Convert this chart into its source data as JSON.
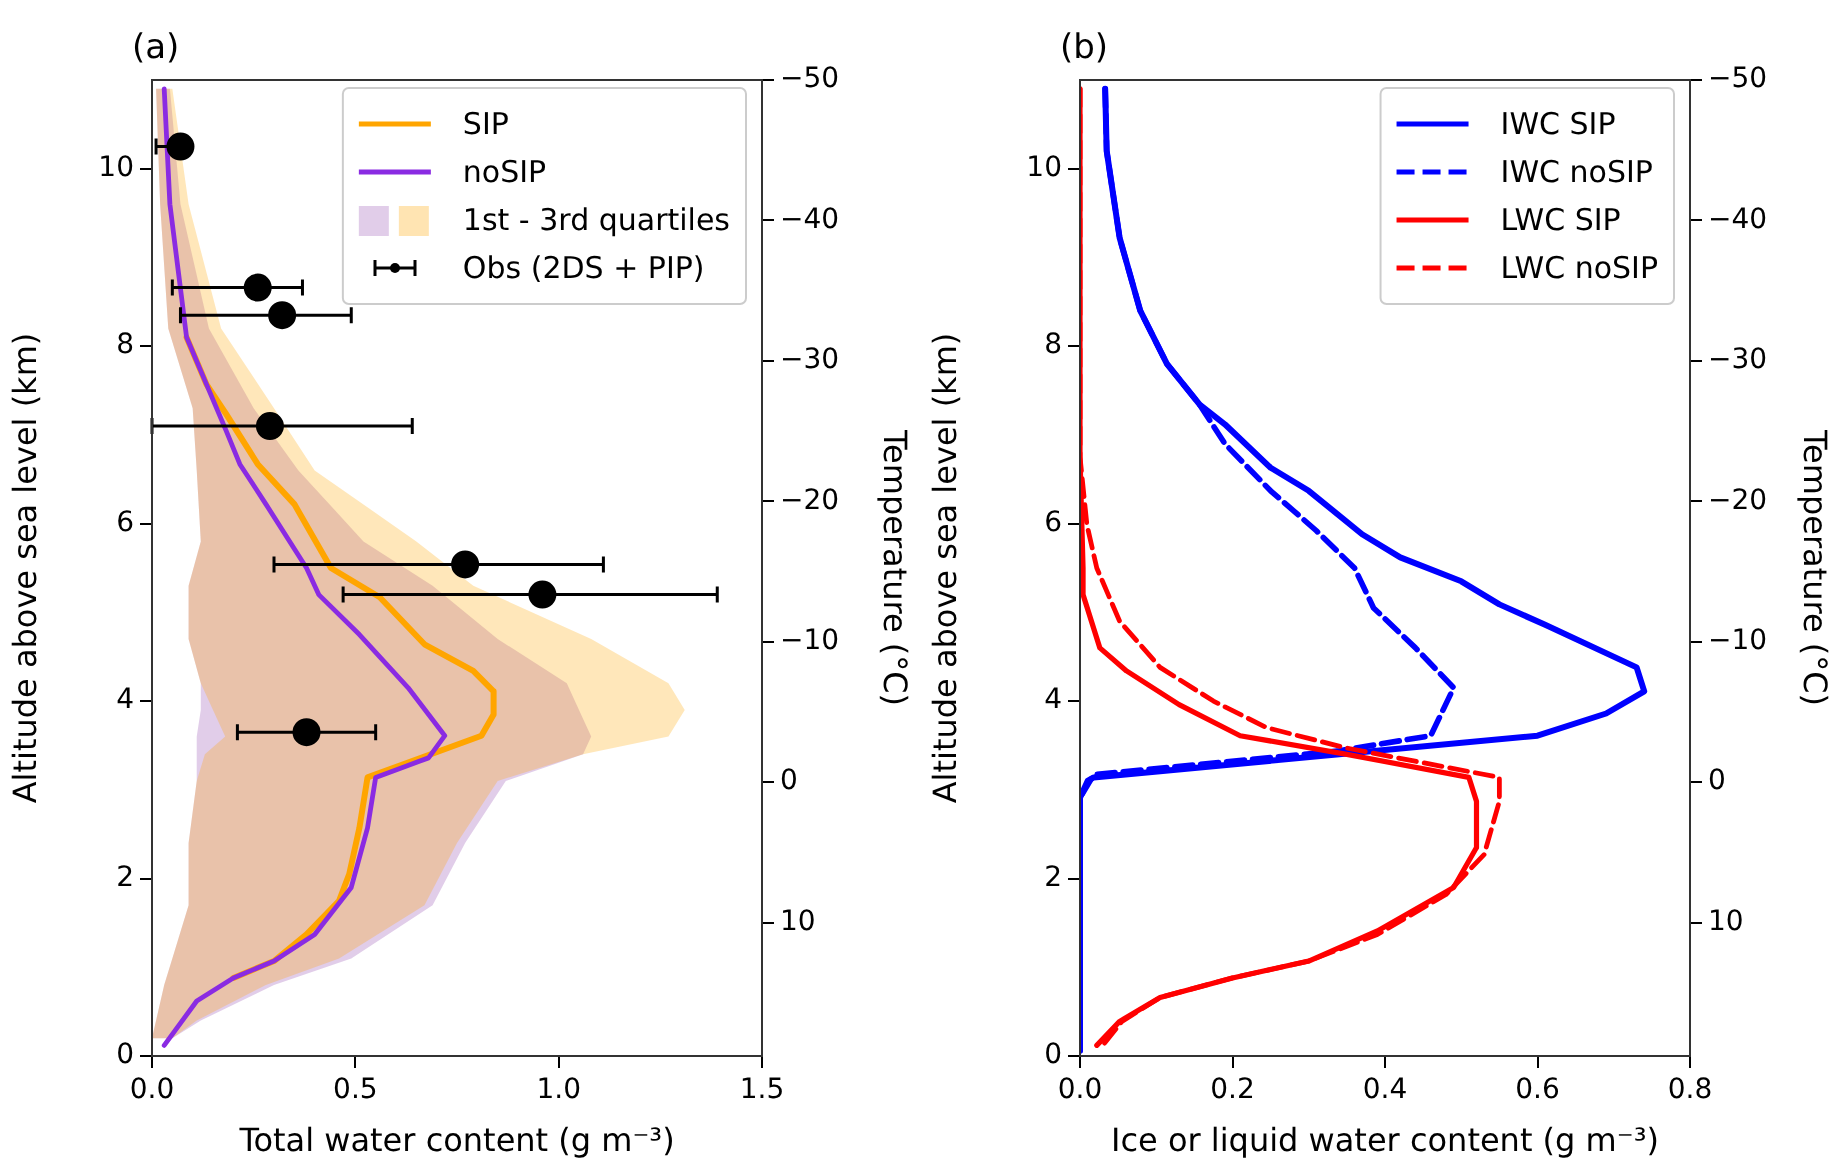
{
  "chart_data": [
    {
      "type": "line",
      "title": "(a)",
      "xlabel": "Total water content (g m⁻³)",
      "ylabel": "Altitude above sea level (km)",
      "y2label": "Temperature (°C)",
      "xlim": [
        0,
        1.5
      ],
      "xticks": [
        {
          "value": 0,
          "label": "0.0"
        },
        {
          "value": 0.5,
          "label": "0.5"
        },
        {
          "value": 1,
          "label": "1.0"
        },
        {
          "value": 1.5,
          "label": "1.5"
        }
      ],
      "ylim": [
        0,
        11
      ],
      "yticks": [
        0,
        2,
        4,
        6,
        8,
        10
      ],
      "y2lim": [
        19.5,
        -50
      ],
      "y2ticks": [
        -50,
        -40,
        -30,
        -20,
        -10,
        0,
        10
      ],
      "grid": false,
      "legend": "top right",
      "series": [
        {
          "name": "SIP",
          "type": "line",
          "color": "#ffa500",
          "line_style": "solid",
          "x": [
            0.085,
            0.134,
            0.183,
            0.26,
            0.35,
            0.44,
            0.56,
            0.67,
            0.79,
            0.84,
            0.84,
            0.81,
            0.53,
            0.51,
            0.485,
            0.46,
            0.38,
            0.3,
            0.2
          ],
          "values": [
            8.1,
            7.57,
            7.23,
            6.67,
            6.22,
            5.5,
            5.17,
            4.64,
            4.34,
            4.11,
            3.85,
            3.61,
            3.14,
            2.57,
            2.05,
            1.75,
            1.37,
            1.07,
            0.88
          ]
        },
        {
          "name": "noSIP",
          "type": "line",
          "color": "#8a2be2",
          "line_style": "solid",
          "x": [
            0.03,
            0.044,
            0.085,
            0.134,
            0.183,
            0.216,
            0.28,
            0.38,
            0.41,
            0.51,
            0.63,
            0.72,
            0.68,
            0.55,
            0.53,
            0.49,
            0.4,
            0.3,
            0.2,
            0.11,
            0.03
          ],
          "values": [
            10.9,
            9.6,
            8.1,
            7.57,
            7.04,
            6.67,
            6.22,
            5.5,
            5.2,
            4.75,
            4.15,
            3.61,
            3.36,
            3.14,
            2.57,
            1.9,
            1.37,
            1.07,
            0.88,
            0.62,
            0.12
          ]
        },
        {
          "type": "area",
          "color": "#9b59b6",
          "x": [
            0.05,
            0.12,
            0.3,
            0.49,
            0.69,
            0.77,
            0.87,
            1.06,
            1.08,
            1.05,
            1.02,
            0.85,
            0.69,
            0.52,
            0.36,
            0.25,
            0.14,
            0.07,
            0.044,
            0.01,
            0.02,
            0.04,
            0.1,
            0.11,
            0.12,
            0.09,
            0.09,
            0.12,
            0.12,
            0.11,
            0.11,
            0.11,
            0.09,
            0.09,
            0.05,
            0.03,
            0.01,
            0
          ],
          "values": [
            0.2,
            0.4,
            0.8,
            1.1,
            1.7,
            2.4,
            3.1,
            3.4,
            3.6,
            3.9,
            4.2,
            4.7,
            5.3,
            5.8,
            6.6,
            7.3,
            8.2,
            9.6,
            10.9,
            10.9,
            9.6,
            8.2,
            7.3,
            6.6,
            5.8,
            5.3,
            4.7,
            4.2,
            3.9,
            3.6,
            3.4,
            3.1,
            2.4,
            1.7,
            1.1,
            0.8,
            0.4,
            0.2
          ]
        },
        {
          "name": "1st - 3rd quartiles",
          "type": "area",
          "color": "#ffa500",
          "x": [
            0.05,
            0.11,
            0.28,
            0.46,
            0.67,
            0.75,
            0.85,
            1.06,
            1.27,
            1.31,
            1.27,
            1.08,
            0.79,
            0.65,
            0.4,
            0.3,
            0.17,
            0.09,
            0.05,
            0.01,
            0.02,
            0.04,
            0.1,
            0.11,
            0.12,
            0.09,
            0.09,
            0.12,
            0.15,
            0.18,
            0.13,
            0.11,
            0.09,
            0.09,
            0.05,
            0.03,
            0.01,
            0
          ],
          "values": [
            0.2,
            0.4,
            0.8,
            1.1,
            1.7,
            2.4,
            3.1,
            3.4,
            3.6,
            3.9,
            4.2,
            4.7,
            5.3,
            5.8,
            6.6,
            7.3,
            8.2,
            9.6,
            10.9,
            10.9,
            9.6,
            8.2,
            7.3,
            6.6,
            5.8,
            5.3,
            4.7,
            4.2,
            3.9,
            3.6,
            3.4,
            3.1,
            2.4,
            1.7,
            1.1,
            0.8,
            0.4,
            0.2
          ]
        },
        {
          "name": "Obs (2DS + PIP)",
          "type": "scatter",
          "color": "#000000",
          "marker": "circle",
          "x": [
            0.07,
            0.26,
            0.32,
            0.29,
            0.77,
            0.96,
            0.38
          ],
          "values": [
            10.25,
            8.66,
            8.35,
            7.1,
            5.54,
            5.2,
            3.65
          ],
          "xerrors": [
            [
              0.01,
              0.07
            ],
            [
              0.05,
              0.37
            ],
            [
              0.07,
              0.49
            ],
            [
              0.0,
              0.64
            ],
            [
              0.3,
              1.11
            ],
            [
              0.47,
              1.39
            ],
            [
              0.21,
              0.55
            ]
          ]
        }
      ]
    },
    {
      "type": "line",
      "title": "(b)",
      "xlabel": "Ice or liquid water content (g m⁻³)",
      "ylabel": "Altitude above sea level (km)",
      "y2label": "Temperature (°C)",
      "xlim": [
        0,
        0.8
      ],
      "xticks": [
        {
          "value": 0,
          "label": "0.0"
        },
        {
          "value": 0.2,
          "label": "0.2"
        },
        {
          "value": 0.4,
          "label": "0.4"
        },
        {
          "value": 0.6,
          "label": "0.6"
        },
        {
          "value": 0.8,
          "label": "0.8"
        }
      ],
      "ylim": [
        0,
        11
      ],
      "yticks": [
        0,
        2,
        4,
        6,
        8,
        10
      ],
      "y2lim": [
        19.5,
        -50
      ],
      "y2ticks": [
        -50,
        -40,
        -30,
        -20,
        -10,
        0,
        10
      ],
      "grid": false,
      "legend": "top right",
      "series": [
        {
          "name": "IWC SIP",
          "type": "line",
          "color": "#0000ff",
          "line_style": "solid",
          "x": [
            0.033,
            0.035,
            0.052,
            0.079,
            0.114,
            0.157,
            0.19,
            0.25,
            0.3,
            0.37,
            0.42,
            0.5,
            0.55,
            0.61,
            0.73,
            0.74,
            0.69,
            0.6,
            0.34,
            0.018,
            0.01,
            0,
            0
          ],
          "values": [
            10.9,
            10.2,
            9.22,
            8.4,
            7.8,
            7.34,
            7.12,
            6.63,
            6.37,
            5.88,
            5.62,
            5.35,
            5.09,
            4.86,
            4.38,
            4.11,
            3.86,
            3.61,
            3.4,
            3.14,
            3.1,
            2.91,
            0.06
          ]
        },
        {
          "name": "IWC noSIP",
          "type": "line",
          "color": "#0000ff",
          "line_style": "dashed",
          "x": [
            0.033,
            0.035,
            0.052,
            0.079,
            0.114,
            0.157,
            0.19,
            0.25,
            0.31,
            0.36,
            0.385,
            0.44,
            0.49,
            0.46,
            0.34,
            0.018,
            0,
            0
          ],
          "values": [
            10.9,
            10.2,
            9.22,
            8.4,
            7.8,
            7.34,
            6.9,
            6.37,
            5.92,
            5.5,
            5.05,
            4.6,
            4.15,
            3.61,
            3.44,
            3.17,
            2.91,
            0.06
          ]
        },
        {
          "name": "LWC SIP",
          "type": "line",
          "color": "#ff0000",
          "line_style": "solid",
          "x": [
            0,
            0,
            0.004,
            0.004,
            0.026,
            0.061,
            0.13,
            0.21,
            0.35,
            0.51,
            0.52,
            0.52,
            0.49,
            0.39,
            0.3,
            0.2,
            0.105,
            0.052,
            0.022
          ],
          "values": [
            10.9,
            6.75,
            5.5,
            5.2,
            4.6,
            4.34,
            3.96,
            3.61,
            3.4,
            3.14,
            2.87,
            2.35,
            1.9,
            1.41,
            1.07,
            0.88,
            0.66,
            0.39,
            0.12
          ]
        },
        {
          "name": "LWC noSIP",
          "type": "line",
          "color": "#ff0000",
          "line_style": "dashed",
          "x": [
            0,
            0,
            0.009,
            0.022,
            0.052,
            0.105,
            0.175,
            0.245,
            0.35,
            0.55,
            0.55,
            0.53,
            0.48,
            0.39,
            0.3,
            0.2,
            0.105,
            0.055,
            0.03
          ],
          "values": [
            10.9,
            6.75,
            5.99,
            5.5,
            4.9,
            4.38,
            4.0,
            3.7,
            3.47,
            3.14,
            2.87,
            2.27,
            1.82,
            1.37,
            1.07,
            0.88,
            0.66,
            0.39,
            0.12
          ]
        }
      ]
    }
  ]
}
